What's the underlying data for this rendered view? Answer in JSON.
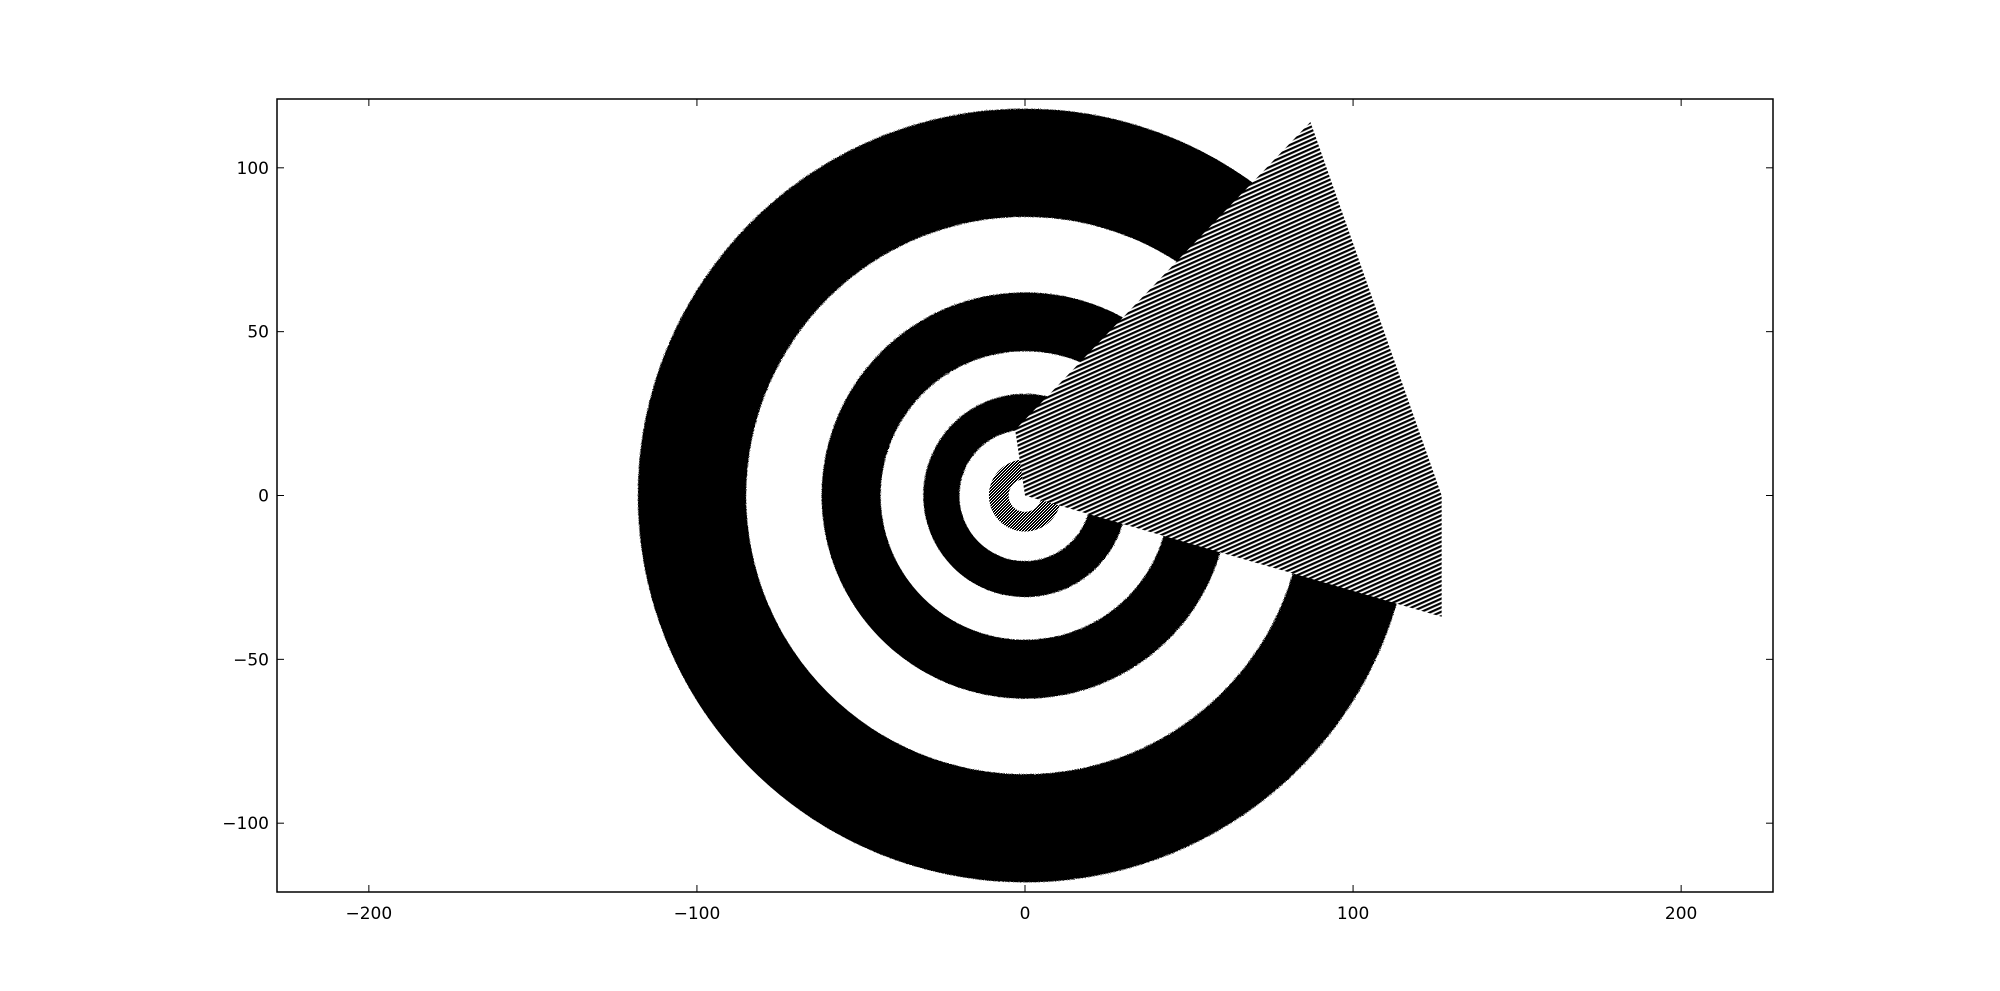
{
  "chart_data": {
    "type": "scatter",
    "title": "",
    "xlabel": "",
    "ylabel": "",
    "xlim": [
      -228,
      228
    ],
    "ylim": [
      -121,
      121
    ],
    "x_ticks": [
      -200,
      -100,
      0,
      100,
      200
    ],
    "y_ticks": [
      -100,
      -50,
      0,
      50,
      100
    ],
    "x_tick_labels": [
      "−200",
      "−100",
      "0",
      "100",
      "200"
    ],
    "y_tick_labels": [
      "−100",
      "−50",
      "0",
      "50",
      "100"
    ],
    "grid": false,
    "legend": "none",
    "marker_color": "#000000",
    "center": [
      0,
      0
    ],
    "rings": [
      {
        "inner_radius": 5,
        "outer_radius": 11,
        "style": "scattered"
      },
      {
        "inner_radius": 20,
        "outer_radius": 31,
        "style": "solid"
      },
      {
        "inner_radius": 44,
        "outer_radius": 62,
        "style": "solid"
      },
      {
        "inner_radius": 85,
        "outer_radius": 118,
        "style": "solid"
      }
    ],
    "wedge": {
      "style": "hatched",
      "vertices": [
        [
          0,
          0
        ],
        [
          -3,
          20
        ],
        [
          87,
          114
        ],
        [
          127,
          0
        ],
        [
          127,
          -37
        ]
      ]
    }
  }
}
